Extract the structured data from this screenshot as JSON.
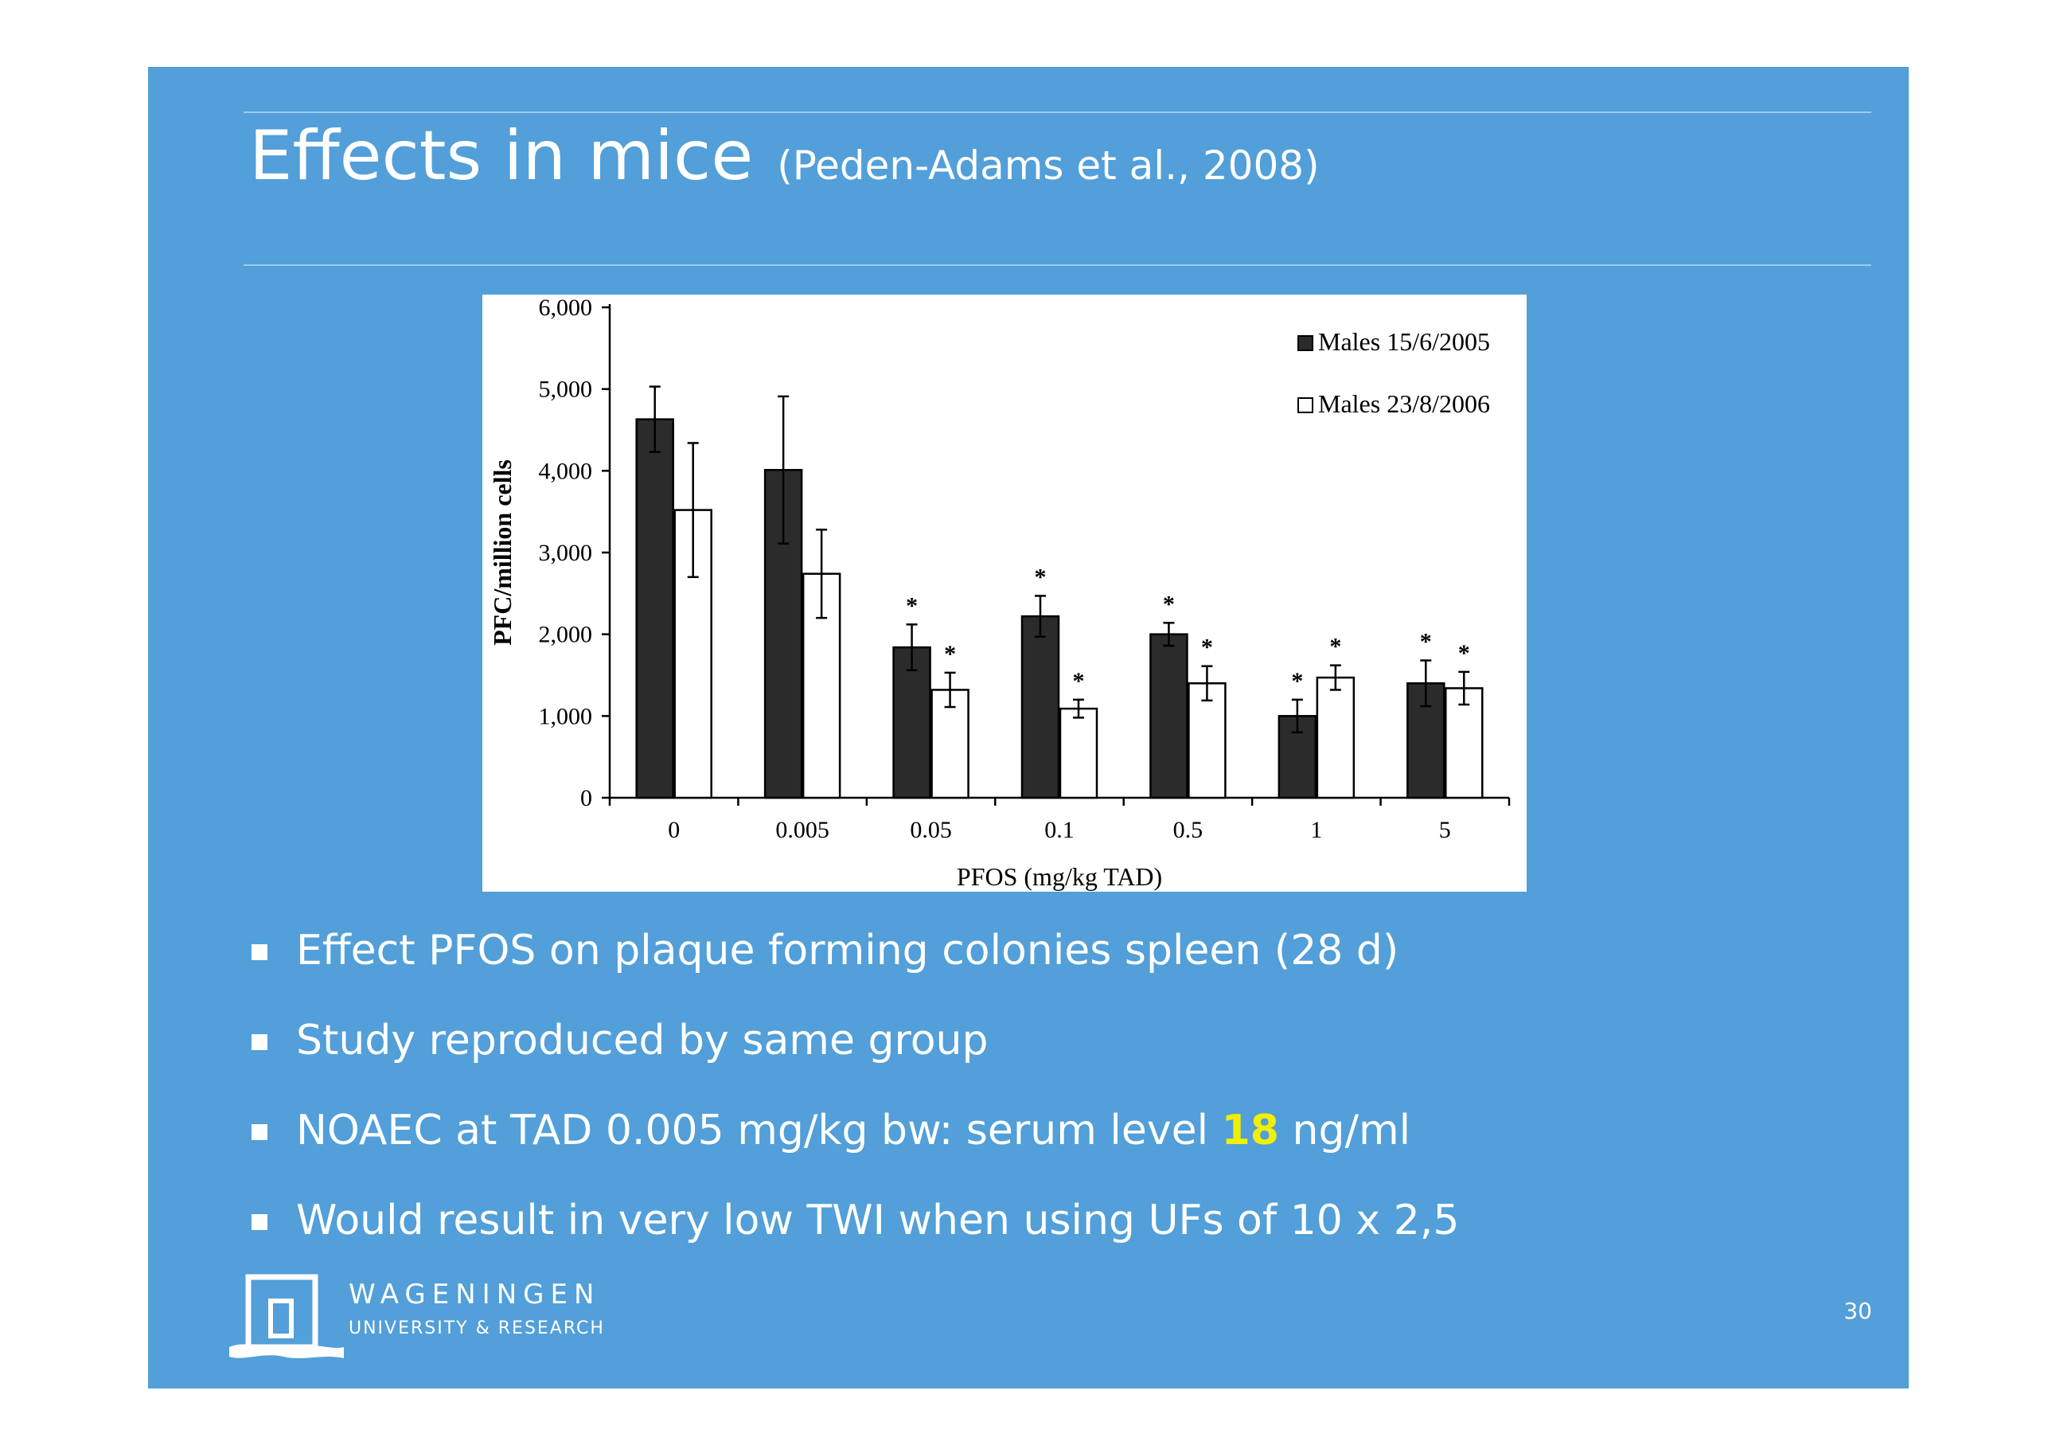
{
  "slide": {
    "title_main": "Effects in mice",
    "title_ref": "(Peden-Adams et al., 2008)",
    "background_color": "#529fd9",
    "page_number": "30"
  },
  "bullets": [
    {
      "text": "Effect PFOS on plaque forming colonies spleen (28 d)"
    },
    {
      "text": "Study reproduced by same group"
    },
    {
      "before": "NOAEC at TAD 0.005 mg/kg bw: serum level ",
      "highlight": "18",
      "after": " ng/ml",
      "highlight_color": "#f0f000"
    },
    {
      "text": "Would result in very low TWI when using UFs of 10 x 2,5"
    }
  ],
  "logo": {
    "name": "WAGENINGEN",
    "sub": "UNIVERSITY & RESEARCH"
  },
  "chart_data": {
    "type": "bar",
    "xlabel": "PFOS (mg/kg  TAD)",
    "ylabel": "PFC/million cells",
    "ylim": [
      0,
      6000
    ],
    "yticks": [
      0,
      1000,
      2000,
      3000,
      4000,
      5000,
      6000
    ],
    "ytick_labels": [
      "0",
      "1,000",
      "2,000",
      "3,000",
      "4,000",
      "5,000",
      "6,000"
    ],
    "categories": [
      "0",
      "0.005",
      "0.05",
      "0.1",
      "0.5",
      "1",
      "5"
    ],
    "legend_position": "top-right",
    "series": [
      {
        "name": "Males 15/6/2005",
        "color": "#2b2b2b",
        "values": [
          4630,
          4010,
          1840,
          2220,
          2000,
          1000,
          1400
        ],
        "errors": [
          400,
          900,
          280,
          250,
          140,
          200,
          280
        ],
        "significant": [
          false,
          false,
          true,
          true,
          true,
          true,
          true
        ]
      },
      {
        "name": "Males 23/8/2006",
        "color": "#ffffff",
        "values": [
          3520,
          2740,
          1320,
          1090,
          1400,
          1470,
          1340
        ],
        "errors": [
          820,
          540,
          210,
          110,
          210,
          150,
          200
        ],
        "significant": [
          false,
          false,
          true,
          true,
          true,
          true,
          true
        ]
      }
    ],
    "significance_marker": "*"
  }
}
